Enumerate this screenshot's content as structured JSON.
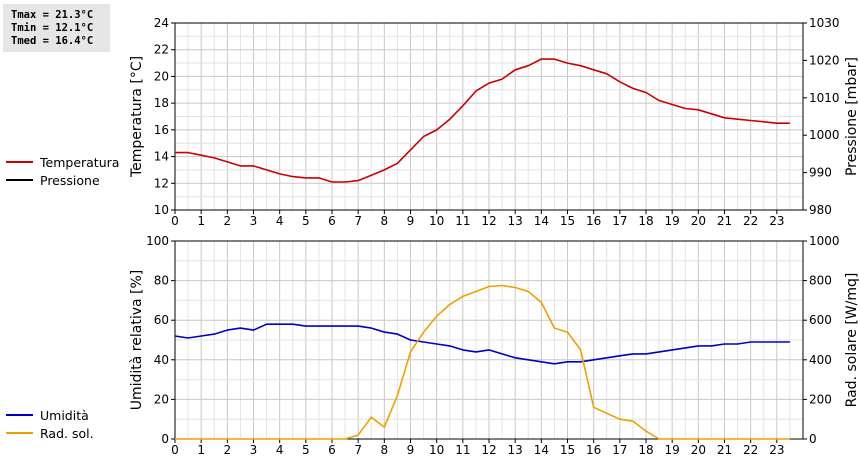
{
  "stats": {
    "tmax": "Tmax = 21.3°C",
    "tmin": "Tmin = 12.1°C",
    "tmed": "Tmed = 16.4°C"
  },
  "chart_data": [
    {
      "type": "line",
      "ylabel": "Temperatura [°C]",
      "y2label": "Pressione [mbar]",
      "xlim": [
        0,
        24
      ],
      "ylim": [
        10,
        24
      ],
      "y2lim": [
        980,
        1030
      ],
      "x_ticks": [
        0,
        1,
        2,
        3,
        4,
        5,
        6,
        7,
        8,
        9,
        10,
        11,
        12,
        13,
        14,
        15,
        16,
        17,
        18,
        19,
        20,
        21,
        22,
        23
      ],
      "y_ticks": [
        10,
        12,
        14,
        16,
        18,
        20,
        22,
        24
      ],
      "y2_ticks": [
        980,
        990,
        1000,
        1010,
        1020,
        1030
      ],
      "grid": true,
      "legend": "left",
      "series": [
        {
          "name": "Temperatura",
          "color": "#cc0000",
          "axis": "left",
          "x": [
            0,
            0.5,
            1,
            1.5,
            2,
            2.5,
            3,
            3.5,
            4,
            4.5,
            5,
            5.5,
            6,
            6.5,
            7,
            7.5,
            8,
            8.5,
            9,
            9.5,
            10,
            10.5,
            11,
            11.5,
            12,
            12.5,
            13,
            13.5,
            14,
            14.5,
            15,
            15.5,
            16,
            16.5,
            17,
            17.5,
            18,
            18.5,
            19,
            19.5,
            20,
            20.5,
            21,
            21.5,
            22,
            22.5,
            23,
            23.5
          ],
          "y": [
            14.3,
            14.3,
            14.1,
            13.9,
            13.6,
            13.3,
            13.3,
            13.0,
            12.7,
            12.5,
            12.4,
            12.4,
            12.1,
            12.1,
            12.2,
            12.6,
            13.0,
            13.5,
            14.5,
            15.5,
            16.0,
            16.8,
            17.8,
            18.9,
            19.5,
            19.8,
            20.5,
            20.8,
            21.3,
            21.3,
            21.0,
            20.8,
            20.5,
            20.2,
            19.6,
            19.1,
            18.8,
            18.2,
            17.9,
            17.6,
            17.5,
            17.2,
            16.9,
            16.8,
            16.7,
            16.6,
            16.5,
            16.5
          ]
        },
        {
          "name": "Pressione",
          "color": "#000000",
          "axis": "right",
          "x": [],
          "y": []
        }
      ]
    },
    {
      "type": "line",
      "ylabel": "Umidità relativa [%]",
      "y2label": "Rad. solare [W/mq]",
      "xlim": [
        0,
        24
      ],
      "ylim": [
        0,
        100
      ],
      "y2lim": [
        0,
        1000
      ],
      "x_ticks": [
        0,
        1,
        2,
        3,
        4,
        5,
        6,
        7,
        8,
        9,
        10,
        11,
        12,
        13,
        14,
        15,
        16,
        17,
        18,
        19,
        20,
        21,
        22,
        23
      ],
      "y_ticks": [
        0,
        20,
        40,
        60,
        80,
        100
      ],
      "y2_ticks": [
        0,
        200,
        400,
        600,
        800,
        1000
      ],
      "grid": true,
      "legend": "left",
      "series": [
        {
          "name": "Umidità",
          "color": "#0000c8",
          "axis": "left",
          "x": [
            0,
            0.5,
            1,
            1.5,
            2,
            2.5,
            3,
            3.5,
            4,
            4.5,
            5,
            5.5,
            6,
            6.5,
            7,
            7.5,
            8,
            8.5,
            9,
            9.5,
            10,
            10.5,
            11,
            11.5,
            12,
            12.5,
            13,
            13.5,
            14,
            14.5,
            15,
            15.5,
            16,
            16.5,
            17,
            17.5,
            18,
            18.5,
            19,
            19.5,
            20,
            20.5,
            21,
            21.5,
            22,
            22.5,
            23,
            23.5
          ],
          "y": [
            52,
            51,
            52,
            53,
            55,
            56,
            55,
            58,
            58,
            58,
            57,
            57,
            57,
            57,
            57,
            56,
            54,
            53,
            50,
            49,
            48,
            47,
            45,
            44,
            45,
            43,
            41,
            40,
            39,
            38,
            39,
            39,
            40,
            41,
            42,
            43,
            43,
            44,
            45,
            46,
            47,
            47,
            48,
            48,
            49,
            49,
            49,
            49
          ]
        },
        {
          "name": "Rad. sol.",
          "color": "#f0a000",
          "axis": "right",
          "x": [
            0,
            0.5,
            1,
            1.5,
            2,
            2.5,
            3,
            3.5,
            4,
            4.5,
            5,
            5.5,
            6,
            6.5,
            7,
            7.5,
            8,
            8.5,
            9,
            9.5,
            10,
            10.5,
            11,
            11.5,
            12,
            12.5,
            13,
            13.5,
            14,
            14.5,
            15,
            15.5,
            16,
            16.5,
            17,
            17.5,
            18,
            18.5,
            19,
            19.5,
            20,
            20.5,
            21,
            21.5,
            22,
            22.5,
            23,
            23.5
          ],
          "y": [
            0,
            0,
            0,
            0,
            0,
            0,
            0,
            0,
            0,
            0,
            0,
            0,
            0,
            0,
            20,
            110,
            60,
            220,
            440,
            540,
            620,
            680,
            720,
            745,
            770,
            775,
            765,
            745,
            690,
            560,
            540,
            450,
            160,
            130,
            100,
            90,
            40,
            0,
            0,
            0,
            0,
            0,
            0,
            0,
            0,
            0,
            0,
            0
          ]
        }
      ]
    }
  ]
}
